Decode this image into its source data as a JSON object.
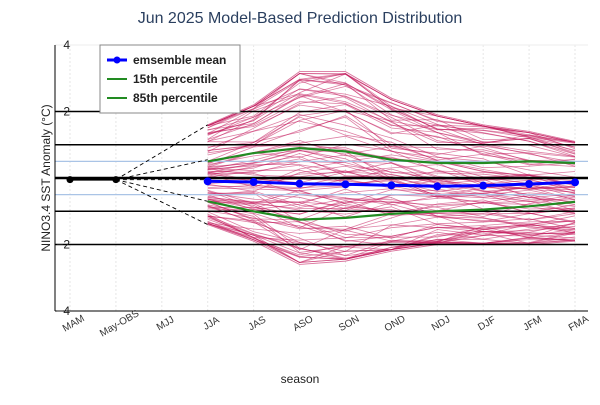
{
  "chart_data": {
    "type": "line",
    "title": "Jun 2025 Model-Based Prediction Distribution",
    "xlabel": "season",
    "ylabel": "NINO3.4 SST Anomaly (°C)",
    "categories": [
      "MAM",
      "May-OBS",
      "MJJ",
      "JJA",
      "JAS",
      "ASO",
      "SON",
      "OND",
      "NDJ",
      "DJF",
      "JFM",
      "FMA"
    ],
    "ylim": [
      -4,
      4
    ],
    "yticks": [
      -4,
      -2,
      2,
      4
    ],
    "thick_reference_lines": [
      -2,
      -1,
      0,
      1,
      2
    ],
    "light_reference_lines": [
      -0.5,
      0.5
    ],
    "observed": {
      "name": "observed",
      "x": [
        "MAM",
        "May-OBS"
      ],
      "values": [
        -0.05,
        -0.05
      ]
    },
    "series": [
      {
        "name": "emsemble mean",
        "color": "#0000ff",
        "x": [
          "JJA",
          "JAS",
          "ASO",
          "SON",
          "OND",
          "NDJ",
          "DJF",
          "JFM",
          "FMA"
        ],
        "values": [
          -0.1,
          -0.12,
          -0.17,
          -0.19,
          -0.22,
          -0.25,
          -0.23,
          -0.18,
          -0.13
        ]
      },
      {
        "name": "15th percentile",
        "color": "#228b22",
        "x": [
          "JJA",
          "JAS",
          "ASO",
          "SON",
          "OND",
          "NDJ",
          "DJF",
          "JFM",
          "FMA"
        ],
        "values": [
          -0.7,
          -1.0,
          -1.25,
          -1.2,
          -1.08,
          -1.0,
          -0.95,
          -0.85,
          -0.72
        ]
      },
      {
        "name": "85th percentile",
        "color": "#228b22",
        "x": [
          "JJA",
          "JAS",
          "ASO",
          "SON",
          "OND",
          "NDJ",
          "DJF",
          "JFM",
          "FMA"
        ],
        "values": [
          0.5,
          0.75,
          0.9,
          0.8,
          0.55,
          0.45,
          0.45,
          0.5,
          0.45
        ]
      }
    ],
    "ensemble": {
      "name": "ensemble members",
      "color": "#c2185b",
      "count": 100,
      "x": [
        "JJA",
        "JAS",
        "ASO",
        "SON",
        "OND",
        "NDJ",
        "DJF",
        "JFM",
        "FMA"
      ],
      "upper_envelope": [
        1.6,
        2.2,
        3.2,
        3.2,
        2.4,
        1.9,
        1.6,
        1.4,
        1.1
      ],
      "lower_envelope": [
        -1.4,
        -1.9,
        -2.6,
        -2.5,
        -2.2,
        -2.0,
        -2.0,
        -2.0,
        -1.9
      ]
    },
    "fan_lines": {
      "from": "May-OBS",
      "to": "JJA",
      "targets": [
        1.6,
        0.55,
        -0.05,
        -0.7,
        -1.4
      ]
    },
    "legend": {
      "position": "top-left",
      "entries": [
        "emsemble mean",
        "15th percentile",
        "85th percentile"
      ]
    }
  }
}
